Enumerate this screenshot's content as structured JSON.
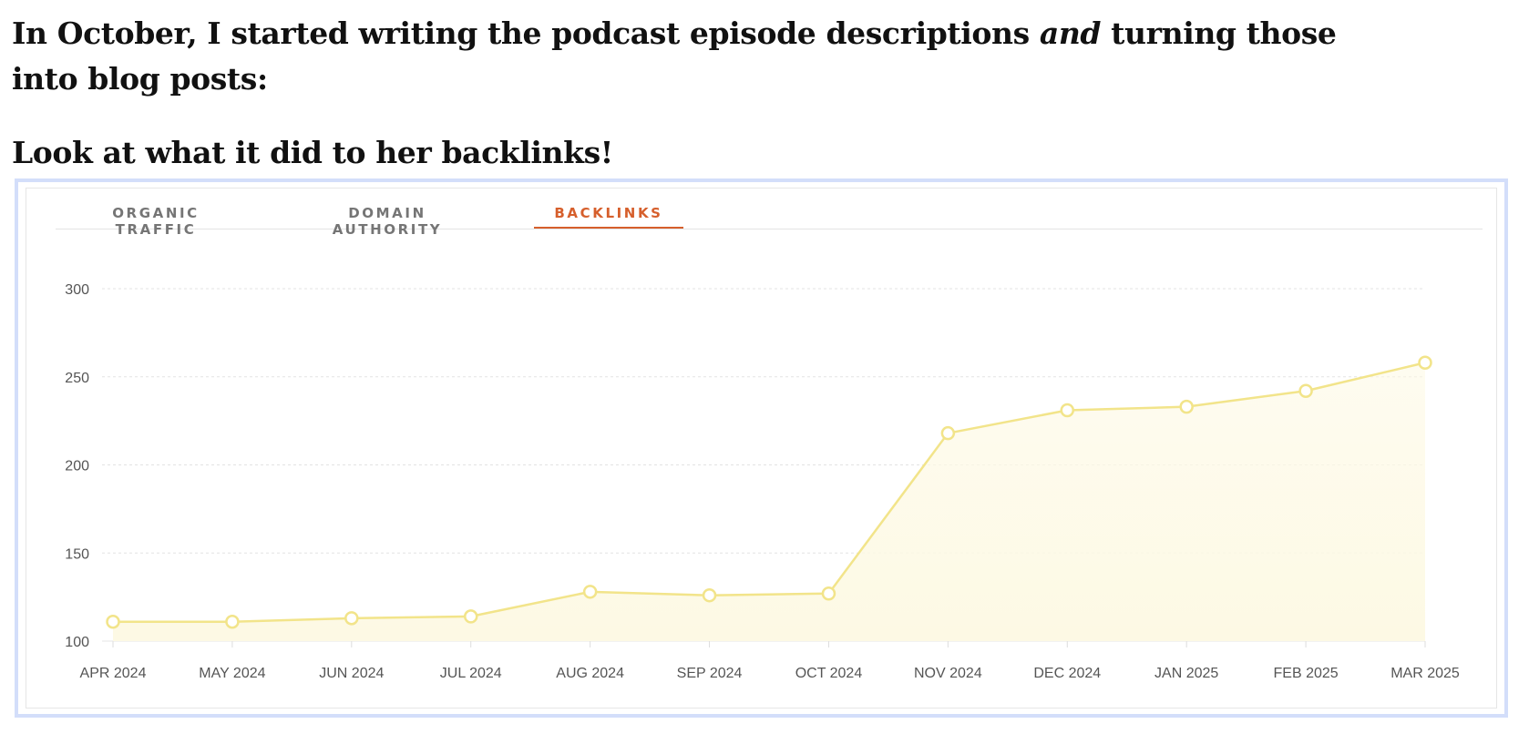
{
  "article": {
    "intro_before": "In October, I started writing the podcast episode descriptions ",
    "intro_emphasis": "and",
    "intro_after": " turning those into blog posts:",
    "heading": "Look at what it did to her backlinks!"
  },
  "tabs": [
    {
      "label": "ORGANIC TRAFFIC",
      "active": false
    },
    {
      "label": "DOMAIN AUTHORITY",
      "active": false
    },
    {
      "label": "BACKLINKS",
      "active": true
    }
  ],
  "colors": {
    "line": "#f2e48a",
    "fill": "#fdf9e4",
    "active_tab": "#d65f2c",
    "frame": "#d3defa"
  },
  "chart_data": {
    "type": "area",
    "title": "",
    "xlabel": "",
    "ylabel": "",
    "categories": [
      "APR 2024",
      "MAY 2024",
      "JUN 2024",
      "JUL 2024",
      "AUG 2024",
      "SEP 2024",
      "OCT 2024",
      "NOV 2024",
      "DEC 2024",
      "JAN 2025",
      "FEB 2025",
      "MAR 2025"
    ],
    "values": [
      111,
      111,
      113,
      114,
      128,
      126,
      127,
      218,
      231,
      233,
      242,
      258
    ],
    "ylim": [
      100,
      300
    ],
    "yticks": [
      100,
      150,
      200,
      250,
      300
    ],
    "grid": true,
    "legend": "none",
    "markers": "hollow-circle"
  }
}
